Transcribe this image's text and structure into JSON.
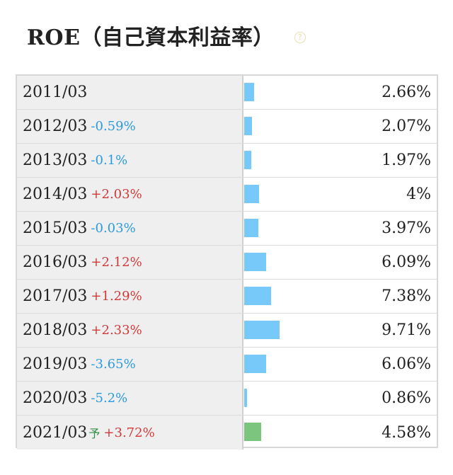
{
  "header": {
    "title": "ROE（自己資本利益率）",
    "help_icon": "help-circle-icon",
    "help_glyph": "?"
  },
  "colors": {
    "bar_actual": "#77c9fa",
    "bar_forecast": "#7cc57e",
    "change_negative": "#2b9be0",
    "change_positive": "#d23a3a",
    "forecast_mark": "#2e8b40"
  },
  "chart_data": {
    "type": "bar",
    "title": "ROE（自己資本利益率）",
    "unit": "%",
    "categories": [
      "2011/03",
      "2012/03",
      "2013/03",
      "2014/03",
      "2015/03",
      "2016/03",
      "2017/03",
      "2018/03",
      "2019/03",
      "2020/03",
      "2021/03"
    ],
    "values": [
      2.66,
      2.07,
      1.97,
      4,
      3.97,
      6.09,
      7.38,
      9.71,
      6.06,
      0.86,
      4.58
    ],
    "rows": [
      {
        "year": "2011/03",
        "change": "",
        "value": "2.66%",
        "forecast": false
      },
      {
        "year": "2012/03",
        "change": "-0.59%",
        "value": "2.07%",
        "forecast": false
      },
      {
        "year": "2013/03",
        "change": "-0.1%",
        "value": "1.97%",
        "forecast": false
      },
      {
        "year": "2014/03",
        "change": "+2.03%",
        "value": "4%",
        "forecast": false
      },
      {
        "year": "2015/03",
        "change": "-0.03%",
        "value": "3.97%",
        "forecast": false
      },
      {
        "year": "2016/03",
        "change": "+2.12%",
        "value": "6.09%",
        "forecast": false
      },
      {
        "year": "2017/03",
        "change": "+1.29%",
        "value": "7.38%",
        "forecast": false
      },
      {
        "year": "2018/03",
        "change": "+2.33%",
        "value": "9.71%",
        "forecast": false
      },
      {
        "year": "2019/03",
        "change": "-3.65%",
        "value": "6.06%",
        "forecast": false
      },
      {
        "year": "2020/03",
        "change": "-5.2%",
        "value": "0.86%",
        "forecast": false
      },
      {
        "year": "2021/03",
        "change": "+3.72%",
        "value": "4.58%",
        "forecast": true,
        "forecast_label": "予"
      }
    ]
  }
}
